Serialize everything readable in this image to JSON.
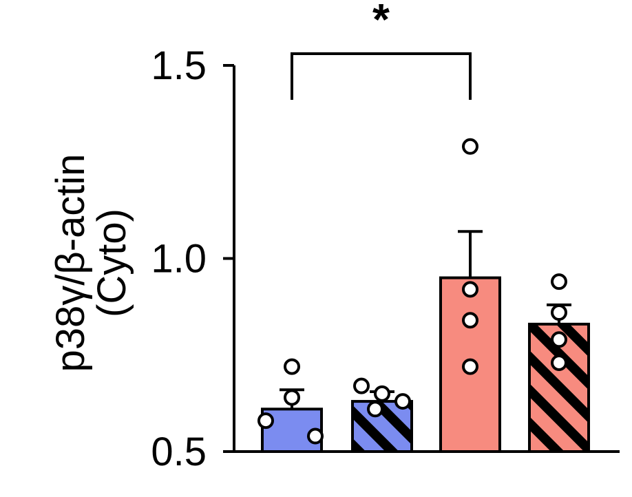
{
  "chart_data": {
    "type": "bar",
    "title": "",
    "ylabel_line1": "p38γ/β-actin",
    "ylabel_line2": "(Cyto)",
    "ylim": [
      0.5,
      1.5
    ],
    "yticks": [
      0.5,
      1.0,
      1.5
    ],
    "ytick_labels": [
      "0.5",
      "1.0",
      "1.5"
    ],
    "grid": false,
    "legend": "none",
    "bars": [
      {
        "value": 0.61,
        "sem": 0.05,
        "color": "#7b8cf0",
        "hatched": false,
        "points": [
          0.72,
          0.64,
          0.58,
          0.54
        ]
      },
      {
        "value": 0.63,
        "sem": 0.025,
        "color": "#7b8cf0",
        "hatched": true,
        "points": [
          0.67,
          0.65,
          0.63,
          0.61
        ]
      },
      {
        "value": 0.95,
        "sem": 0.12,
        "color": "#f78b7f",
        "hatched": false,
        "points": [
          1.29,
          0.92,
          0.84,
          0.72
        ]
      },
      {
        "value": 0.83,
        "sem": 0.05,
        "color": "#f78b7f",
        "hatched": true,
        "points": [
          0.94,
          0.86,
          0.79,
          0.73
        ]
      }
    ],
    "significance": {
      "from_bar": 0,
      "to_bar": 2,
      "label": "*"
    }
  }
}
